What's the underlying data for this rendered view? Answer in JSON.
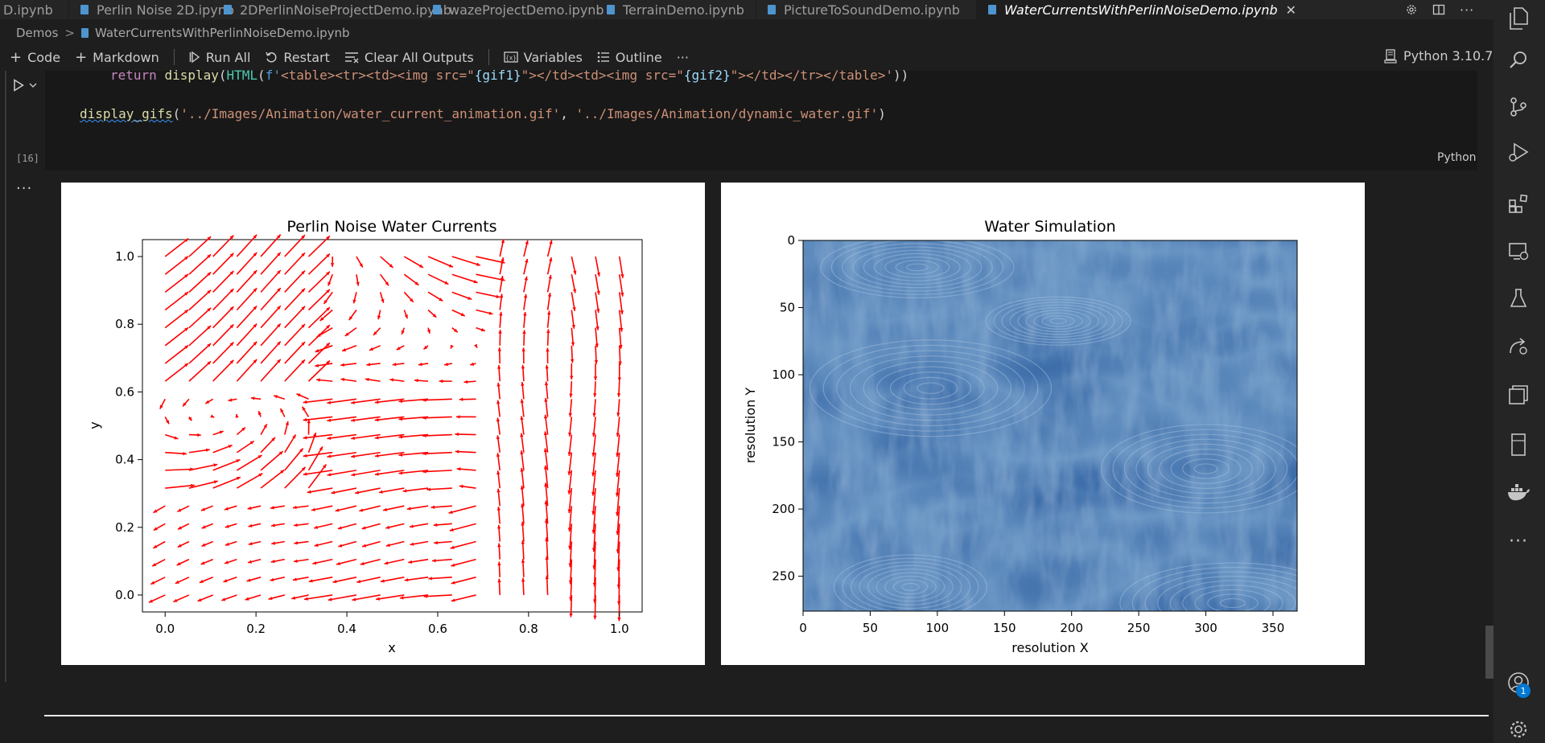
{
  "tabs": [
    {
      "label": "D.ipynb",
      "active": false
    },
    {
      "label": "Perlin Noise 2D.ipynb",
      "active": false
    },
    {
      "label": "2DPerlinNoiseProjectDemo.ipynb",
      "active": false
    },
    {
      "label": "wazeProjectDemo.ipynb",
      "active": false
    },
    {
      "label": "TerrainDemo.ipynb",
      "active": false
    },
    {
      "label": "PictureToSoundDemo.ipynb",
      "active": false
    },
    {
      "label": "WaterCurrentsWithPerlinNoiseDemo.ipynb",
      "active": true
    }
  ],
  "tab_close": "✕",
  "breadcrumb": {
    "folder": "Demos",
    "separator": ">",
    "file": "WaterCurrentsWithPerlinNoiseDemo.ipynb"
  },
  "toolbar": {
    "code": "Code",
    "markdown": "Markdown",
    "run_all": "Run All",
    "restart": "Restart",
    "clear_outputs": "Clear All Outputs",
    "variables": "Variables",
    "outline": "Outline",
    "more": "···"
  },
  "kernel": "Python 3.10.7",
  "cell": {
    "exec_count": "[16]",
    "language": "Python",
    "line1": {
      "kw": "return",
      "fn1": "display",
      "cls": "HTML",
      "prefix": "f'",
      "s1": "<table><tr><td><img src=\"",
      "v1": "{gif1}",
      "s2": "\"></td><td><img src=\"",
      "v2": "{gif2}",
      "s3": "\"></td></tr></table>'",
      "tail": "))"
    },
    "line2": {
      "fn": "display_gifs",
      "arg1": "'../Images/Animation/water_current_animation.gif'",
      "arg2": "'../Images/Animation/dynamic_water.gif'"
    }
  },
  "output_more": "···",
  "figure1": {
    "chart_data": {
      "type": "quiver",
      "title": "Perlin Noise Water Currents",
      "xlabel": "x",
      "ylabel": "y",
      "xlim": [
        -0.05,
        1.05
      ],
      "ylim": [
        -0.05,
        1.05
      ],
      "xticks": [
        "0.0",
        "0.2",
        "0.4",
        "0.6",
        "0.8",
        "1.0"
      ],
      "yticks": [
        "0.0",
        "0.2",
        "0.4",
        "0.6",
        "0.8",
        "1.0"
      ],
      "grid": false,
      "arrow_color": "#ff0000",
      "grid_points": 20
    }
  },
  "figure2": {
    "chart_data": {
      "type": "heatmap",
      "title": "Water Simulation",
      "xlabel": "resolution X",
      "ylabel": "resolution Y",
      "xlim": [
        0,
        368
      ],
      "ylim": [
        276,
        0
      ],
      "xticks": [
        "0",
        "50",
        "100",
        "150",
        "200",
        "250",
        "300",
        "350"
      ],
      "yticks": [
        "0",
        "50",
        "100",
        "150",
        "200",
        "250"
      ],
      "colormap": "blue water texture",
      "base_color": "#3e6eaa"
    }
  },
  "activity_icons": [
    "explorer-icon",
    "search-icon",
    "source-control-icon",
    "run-debug-icon",
    "extensions-icon",
    "remote-explorer-icon",
    "testing-icon",
    "live-share-icon",
    "layers-icon",
    "device-icon",
    "docker-icon",
    "more-icon",
    "account-icon",
    "settings-gear-icon"
  ],
  "account_badge": "1"
}
